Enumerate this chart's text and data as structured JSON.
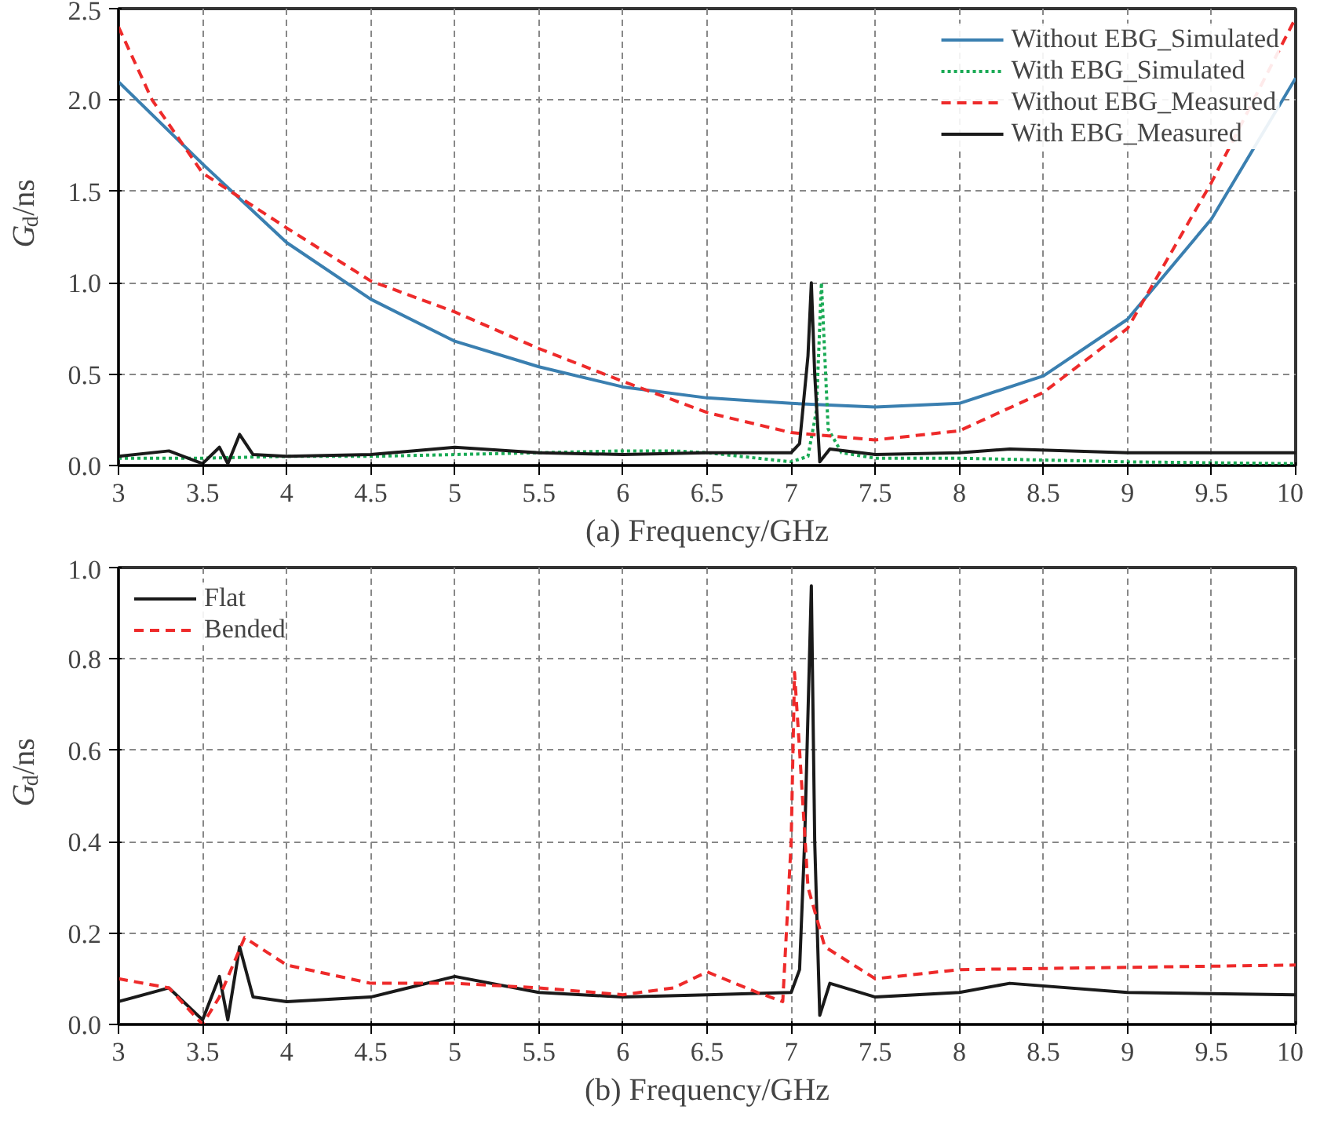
{
  "chart_data": [
    {
      "type": "line",
      "xlabel": "(a) Frequency/GHz",
      "ylabel": "G$_{d}$/ns",
      "xlim": [
        3,
        10
      ],
      "ylim": [
        0,
        2.5
      ],
      "xticks": [
        3,
        3.5,
        4,
        4.5,
        5,
        5.5,
        6,
        6.5,
        7,
        7.5,
        8,
        8.5,
        9,
        9.5,
        10
      ],
      "yticks": [
        {
          "value": 0,
          "label": "0.0"
        },
        0.5,
        {
          "value": 1,
          "label": "1.0"
        },
        1.5,
        {
          "value": 2,
          "label": "2.0"
        },
        2.5
      ],
      "grid": true,
      "legend": "top right",
      "series": [
        {
          "name": "Without EBG_Simulated",
          "color": "#3a7fb0",
          "line_style": "solid",
          "x": [
            3,
            3.5,
            4,
            4.5,
            5,
            5.5,
            6,
            6.5,
            7,
            7.5,
            8,
            8.5,
            9,
            9.5,
            10
          ],
          "values": [
            2.1,
            1.65,
            1.22,
            0.91,
            0.68,
            0.54,
            0.43,
            0.37,
            0.34,
            0.32,
            0.34,
            0.49,
            0.8,
            1.35,
            2.12
          ]
        },
        {
          "name": "With EBG_Simulated",
          "color": "#1aaa55",
          "line_style": "dotted",
          "x": [
            3,
            3.5,
            4,
            4.5,
            5,
            5.5,
            6,
            6.3,
            6.5,
            6.8,
            7,
            7.1,
            7.15,
            7.18,
            7.22,
            7.3,
            7.5,
            8,
            9,
            10
          ],
          "values": [
            0.04,
            0.04,
            0.05,
            0.05,
            0.06,
            0.07,
            0.08,
            0.08,
            0.07,
            0.04,
            0.02,
            0.05,
            0.3,
            1.0,
            0.2,
            0.07,
            0.04,
            0.04,
            0.02,
            0.01
          ]
        },
        {
          "name": "Without EBG_Measured",
          "color": "#ee2a2a",
          "line_style": "dashed",
          "x": [
            3,
            3.2,
            3.5,
            4,
            4.5,
            5,
            5.5,
            6,
            6.5,
            7,
            7.5,
            8,
            8.5,
            9,
            9.5,
            10
          ],
          "values": [
            2.4,
            2.0,
            1.6,
            1.3,
            1.01,
            0.84,
            0.64,
            0.46,
            0.29,
            0.18,
            0.14,
            0.19,
            0.4,
            0.75,
            1.55,
            2.45
          ]
        },
        {
          "name": "With EBG_Measured",
          "color": "#1a1a1a",
          "line_style": "solid",
          "x": [
            3,
            3.3,
            3.5,
            3.6,
            3.65,
            3.72,
            3.8,
            4,
            4.5,
            5,
            5.5,
            6,
            6.5,
            7,
            7.05,
            7.1,
            7.12,
            7.14,
            7.17,
            7.23,
            7.5,
            8,
            8.3,
            9,
            10
          ],
          "values": [
            0.05,
            0.08,
            0.01,
            0.1,
            0.01,
            0.17,
            0.06,
            0.05,
            0.06,
            0.1,
            0.07,
            0.06,
            0.07,
            0.07,
            0.12,
            0.6,
            1.0,
            0.5,
            0.02,
            0.09,
            0.06,
            0.07,
            0.09,
            0.07,
            0.07
          ]
        }
      ]
    },
    {
      "type": "line",
      "xlabel": "(b) Frequency/GHz",
      "ylabel": "G$_{d}$/ns",
      "xlim": [
        3,
        10
      ],
      "ylim": [
        0,
        1.0
      ],
      "xticks": [
        3,
        3.5,
        4,
        4.5,
        5,
        5.5,
        6,
        6.5,
        7,
        7.5,
        8,
        8.5,
        9,
        9.5,
        10
      ],
      "yticks": [
        {
          "value": 0,
          "label": "0.0"
        },
        0.2,
        0.4,
        0.6,
        0.8,
        {
          "value": 1,
          "label": "1.0"
        }
      ],
      "grid": true,
      "legend": "top left",
      "series": [
        {
          "name": "Flat",
          "color": "#1a1a1a",
          "line_style": "solid",
          "x": [
            3,
            3.3,
            3.5,
            3.6,
            3.65,
            3.72,
            3.8,
            4,
            4.5,
            5,
            5.5,
            6,
            6.5,
            7,
            7.05,
            7.08,
            7.12,
            7.14,
            7.17,
            7.23,
            7.5,
            8,
            8.3,
            9,
            10
          ],
          "values": [
            0.05,
            0.08,
            0.01,
            0.105,
            0.01,
            0.17,
            0.06,
            0.05,
            0.06,
            0.105,
            0.07,
            0.06,
            0.065,
            0.07,
            0.12,
            0.4,
            0.96,
            0.4,
            0.02,
            0.09,
            0.06,
            0.07,
            0.09,
            0.07,
            0.065
          ]
        },
        {
          "name": "Bended",
          "color": "#ee2a2a",
          "line_style": "dashed",
          "x": [
            3,
            3.3,
            3.5,
            3.6,
            3.75,
            4,
            4.5,
            5,
            5.5,
            6,
            6.3,
            6.5,
            6.8,
            6.95,
            7.0,
            7.02,
            7.05,
            7.1,
            7.2,
            7.5,
            8,
            9,
            10
          ],
          "values": [
            0.1,
            0.08,
            0.0,
            0.06,
            0.19,
            0.13,
            0.09,
            0.09,
            0.08,
            0.065,
            0.08,
            0.115,
            0.07,
            0.05,
            0.4,
            0.77,
            0.6,
            0.3,
            0.17,
            0.1,
            0.12,
            0.125,
            0.13
          ]
        }
      ]
    }
  ]
}
